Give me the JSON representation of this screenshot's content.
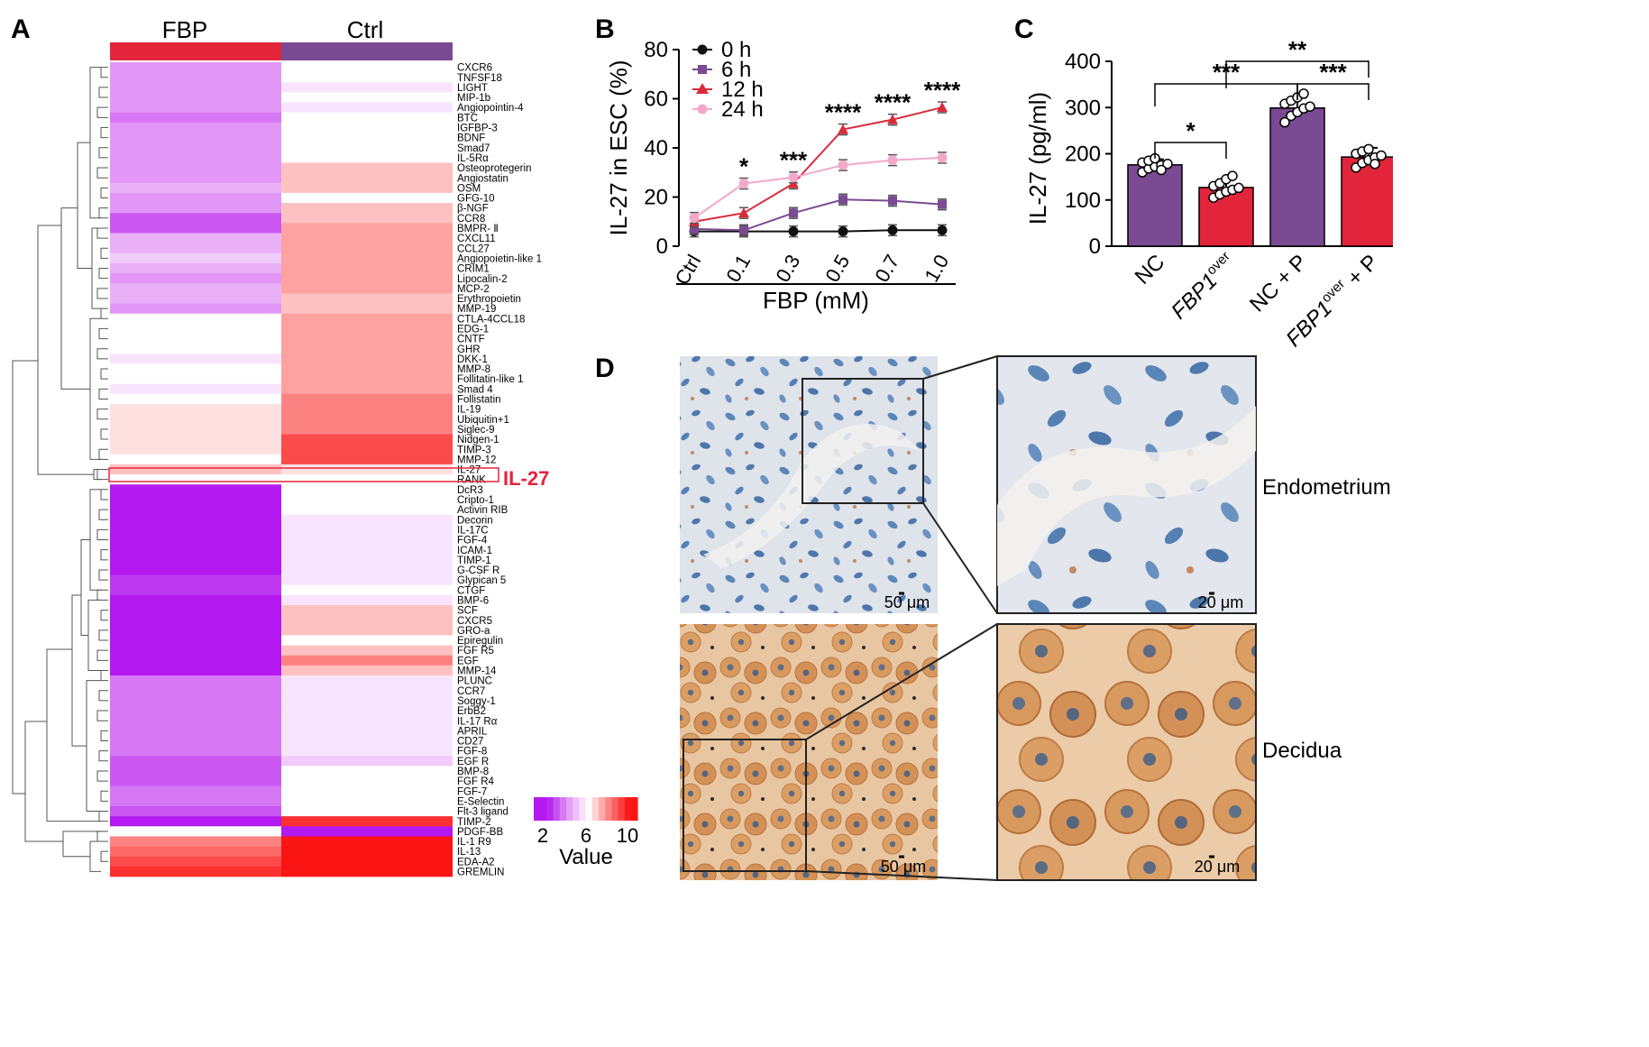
{
  "panels": {
    "a": "A",
    "b": "B",
    "c": "C",
    "d": "D"
  },
  "colors": {
    "fbp_bar": "#e3253c",
    "ctrl_bar": "#7a4a93",
    "highlight": "#e3253c",
    "purple": "#7a4a93",
    "red": "#e3253c"
  },
  "heatmap": {
    "col_labels": [
      "FBP",
      "Ctrl"
    ],
    "highlight_label": "IL-27",
    "genes": [
      "CXCR6",
      "TNFSF18",
      "LIGHT",
      "MIP-1b",
      "Angiopointin-4",
      "BTC",
      "IGFBP-3",
      "BDNF",
      "Smad7",
      "IL-5Rα",
      "Osteoprotegerin",
      "Angiostatin",
      "OSM",
      "GFG-10",
      "β-NGF",
      "CCR8",
      "BMPR- Ⅱ",
      "CXCL11",
      "CCL27",
      "Angiopoietin-like 1",
      "CRIM1",
      "Lipocalin-2",
      "MCP-2",
      "Erythropoietin",
      "MMP-19",
      "CTLA-4CCL18",
      "EDG-1",
      "CNTF",
      "GHR",
      "DKK-1",
      "MMP-8",
      "Follitatin-like 1",
      "Smad 4",
      "Follistatin",
      "IL-19",
      "Ubiquitin+1",
      "Siglec-9",
      "Nidgen-1",
      "TIMP-3",
      "MMP-12",
      "IL-27",
      "RANK",
      "DcR3",
      "Cripto-1",
      "Activin RIB",
      "Decorin",
      "IL-17C",
      "FGF-4",
      "ICAM-1",
      "TIMP-1",
      "G-CSF R",
      "Glypican 5",
      "CTGF",
      "BMP-6",
      "SCF",
      "CXCR5",
      "GRO-a",
      "Epiregulin",
      "FGF R5",
      "EGF",
      "MMP-14",
      "PLUNC",
      "CCR7",
      "Soggy-1",
      "ErbB2",
      "IL-17 Rα",
      "APRIL",
      "CD27",
      "FGF-8",
      "EGF R",
      "BMP-8",
      "FGF R4",
      "FGF-7",
      "E-Selectin",
      "Flt-3 ligand",
      "TIMP-2",
      "PDGF-BB",
      "IL-1 R9",
      "IL-13",
      "EDA-A2",
      "GREMLIN"
    ],
    "fbp_values": [
      4,
      4,
      4,
      4,
      4,
      3.5,
      4,
      4,
      4,
      4,
      4,
      4,
      4.5,
      4,
      4,
      3,
      3,
      4.5,
      4.5,
      5,
      4.5,
      4,
      4.5,
      4.5,
      4,
      6,
      6,
      6,
      6,
      5.5,
      6,
      6,
      5.5,
      6,
      6.5,
      6.5,
      6.5,
      6.5,
      6.5,
      6,
      7,
      6,
      2,
      2,
      2,
      2,
      2,
      2,
      2,
      2,
      2,
      2.5,
      2.5,
      2,
      2,
      2,
      2,
      2,
      2,
      2,
      2,
      3.5,
      3.5,
      3.5,
      3.5,
      3.5,
      3.5,
      3.5,
      3.5,
      3,
      3,
      3,
      3.5,
      3.5,
      3,
      2,
      6,
      8,
      8.5,
      9,
      9.5
    ],
    "ctrl_values": [
      6,
      6,
      5.5,
      6,
      5.5,
      6,
      6,
      6,
      6,
      6,
      7,
      7,
      7,
      6,
      7,
      7,
      7.5,
      7.5,
      7.5,
      7.5,
      7.5,
      7.5,
      7.5,
      7,
      7,
      7.5,
      7.5,
      7.5,
      7.5,
      7.5,
      7.5,
      7.5,
      7.5,
      8,
      8,
      8,
      8,
      9,
      9,
      9,
      6.5,
      6,
      6,
      6,
      6,
      5.5,
      5.5,
      5.5,
      5.5,
      5.5,
      5.5,
      5.5,
      6,
      5.5,
      7,
      7,
      7,
      6,
      7,
      8,
      7,
      5.5,
      5.5,
      5.5,
      5.5,
      5.5,
      5.5,
      5.5,
      5.5,
      5,
      6,
      6,
      6,
      6,
      6,
      9.5,
      2,
      10,
      10,
      10,
      10
    ],
    "legend_title": "Value",
    "legend_ticks": [
      "2",
      "6",
      "10"
    ]
  },
  "chart_data": [
    {
      "type": "line",
      "panel": "B",
      "categories": [
        "Ctrl",
        "0.1",
        "0.3",
        "0.5",
        "0.7",
        "1.0"
      ],
      "series": [
        {
          "name": "0 h",
          "values": [
            6,
            6,
            6,
            6,
            6.5,
            6.5
          ],
          "color": "#111111",
          "marker": "circle"
        },
        {
          "name": "6 h",
          "values": [
            7,
            6.5,
            13.5,
            19,
            18.5,
            17
          ],
          "color": "#7a4a93",
          "marker": "square"
        },
        {
          "name": "12 h",
          "values": [
            10,
            13.5,
            25.5,
            47.5,
            51.5,
            56.5
          ],
          "color": "#d92b3a",
          "marker": "triangle"
        },
        {
          "name": "24 h",
          "values": [
            11.5,
            25.5,
            28,
            33,
            35,
            36
          ],
          "color": "#f2a9c9",
          "marker": "circle"
        }
      ],
      "significance": [
        "",
        "*",
        "***",
        "****",
        "****",
        "****"
      ],
      "xlabel": "FBP (mM)",
      "ylabel": "IL-27 in ESC (%)",
      "yticks": [
        0,
        20,
        40,
        60,
        80
      ],
      "ylim": [
        0,
        80
      ]
    },
    {
      "type": "bar",
      "panel": "C",
      "categories": [
        "NC",
        "FBP1over",
        "NC + P",
        "FBP1over + P"
      ],
      "category_main": [
        "NC",
        "FBP1",
        "NC + P",
        "FBP1"
      ],
      "category_sup": [
        "",
        "over",
        "",
        "over"
      ],
      "category_tail": [
        "",
        "",
        "",
        " + P"
      ],
      "values": [
        176,
        127,
        299,
        193
      ],
      "errors": [
        12,
        18,
        22,
        20
      ],
      "colors": [
        "#7a4a93",
        "#e3253c",
        "#7a4a93",
        "#e3253c"
      ],
      "points": [
        [
          160,
          168,
          172,
          175,
          178,
          181,
          185,
          190,
          165
        ],
        [
          105,
          112,
          118,
          122,
          126,
          130,
          136,
          145,
          152
        ],
        [
          268,
          282,
          290,
          298,
          302,
          308,
          315,
          322,
          330
        ],
        [
          170,
          180,
          186,
          192,
          196,
          200,
          205,
          210,
          178
        ]
      ],
      "ylabel": "IL-27 (pg/ml)",
      "yticks": [
        0,
        100,
        200,
        300,
        400
      ],
      "ylim": [
        0,
        400
      ],
      "brackets": [
        {
          "from": 0,
          "to": 1,
          "label": "*"
        },
        {
          "from": 0,
          "to": 2,
          "label": "***"
        },
        {
          "from": 2,
          "to": 3,
          "label": "***"
        },
        {
          "from": 1,
          "to": 3,
          "label": "**"
        }
      ]
    }
  ],
  "micrographs": {
    "row1_label": "Endometrium",
    "row2_label": "Decidua",
    "scale_large": "50 μm",
    "scale_small": "20 μm"
  }
}
